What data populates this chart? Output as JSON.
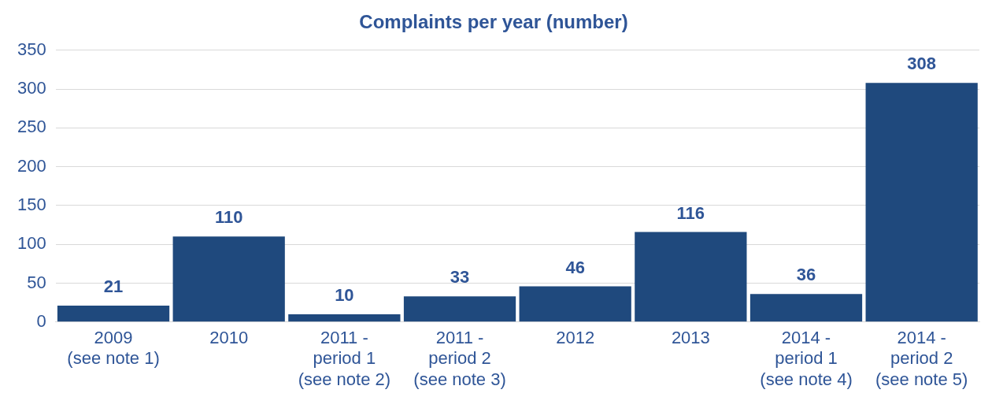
{
  "chart_data": {
    "type": "bar",
    "title": "Complaints per year (number)",
    "categories": [
      "2009\n(see note 1)",
      "2010",
      "2011 -\nperiod 1\n(see note 2)",
      "2011 -\nperiod 2\n(see note 3)",
      "2012",
      "2013",
      "2014 -\nperiod 1\n(see note 4)",
      "2014 -\nperiod 2\n(see note 5)"
    ],
    "values": [
      21,
      110,
      10,
      33,
      46,
      116,
      36,
      308
    ],
    "color": "#1f497d",
    "ylim": [
      0,
      350
    ],
    "yticks": [
      0,
      50,
      100,
      150,
      200,
      250,
      300,
      350
    ],
    "grid": "y",
    "legend": false,
    "data_labels": true
  }
}
